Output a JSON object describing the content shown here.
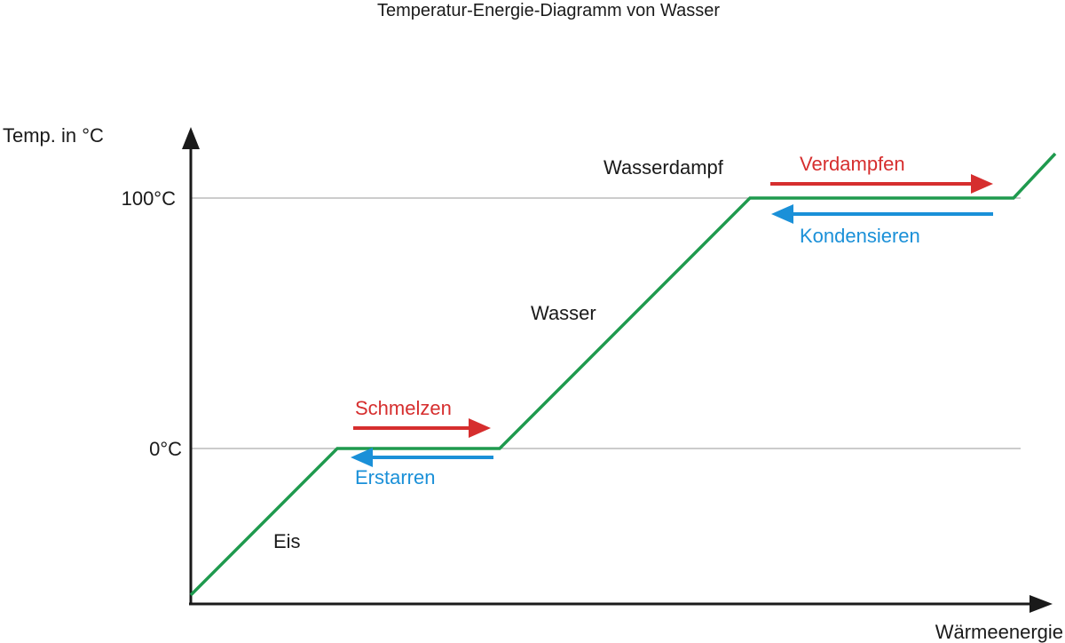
{
  "title": "Temperatur-Energie-Diagramm von Wasser",
  "axes": {
    "y_label": "Temp. in °C",
    "x_label": "Wärmeenergie",
    "y_ticks": [
      "100°C",
      "0°C"
    ]
  },
  "phases": {
    "ice": "Eis",
    "water": "Wasser",
    "steam": "Wasserdampf"
  },
  "transitions": {
    "melting": "Schmelzen",
    "freezing": "Erstarren",
    "evaporating": "Verdampfen",
    "condensing": "Kondensieren"
  },
  "colors": {
    "curve": "#1f9a4e",
    "heating_arrow": "#d62e2e",
    "cooling_arrow": "#1a90d8",
    "axis": "#1a1a1a",
    "reference_line": "#999999"
  }
}
